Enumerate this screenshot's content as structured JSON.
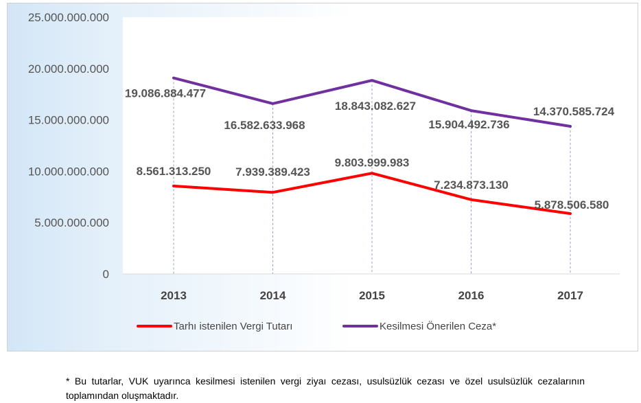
{
  "chart_data": {
    "type": "line",
    "categories": [
      "2013",
      "2014",
      "2015",
      "2016",
      "2017"
    ],
    "ylim": [
      0,
      25000000000
    ],
    "yticks": [
      0,
      5000000000,
      10000000000,
      15000000000,
      20000000000,
      25000000000
    ],
    "ytick_labels": [
      "0",
      "5.000.000.000",
      "10.000.000.000",
      "15.000.000.000",
      "20.000.000.000",
      "25.000.000.000"
    ],
    "series": [
      {
        "name": "Tarhı istenilen Vergi Tutarı",
        "color": "#ff0000",
        "values": [
          8561313250,
          7939389423,
          9803999983,
          7234873130,
          5878506580
        ],
        "labels": [
          "8.561.313.250",
          "7.939.389.423",
          "9.803.999.983",
          "7.234.873.130",
          "5.878.506.580"
        ]
      },
      {
        "name": "Kesilmesi Önerilen Ceza*",
        "color": "#7030a0",
        "values": [
          19086884477,
          16582633968,
          18843082627,
          15904492736,
          14370585724
        ],
        "labels": [
          "19.086.884.477",
          "16.582.633.968",
          "18.843.082.627",
          "15.904.492.736",
          "14.370.585.724"
        ]
      }
    ],
    "legend_position": "bottom",
    "grid": false,
    "drop_lines": true
  },
  "footnote": "* Bu tutarlar, VUK uyarınca kesilmesi istenilen vergi ziyaı cezası, usulsüzlük cezası ve özel usulsüzlük cezalarının toplamından oluşmaktadır."
}
